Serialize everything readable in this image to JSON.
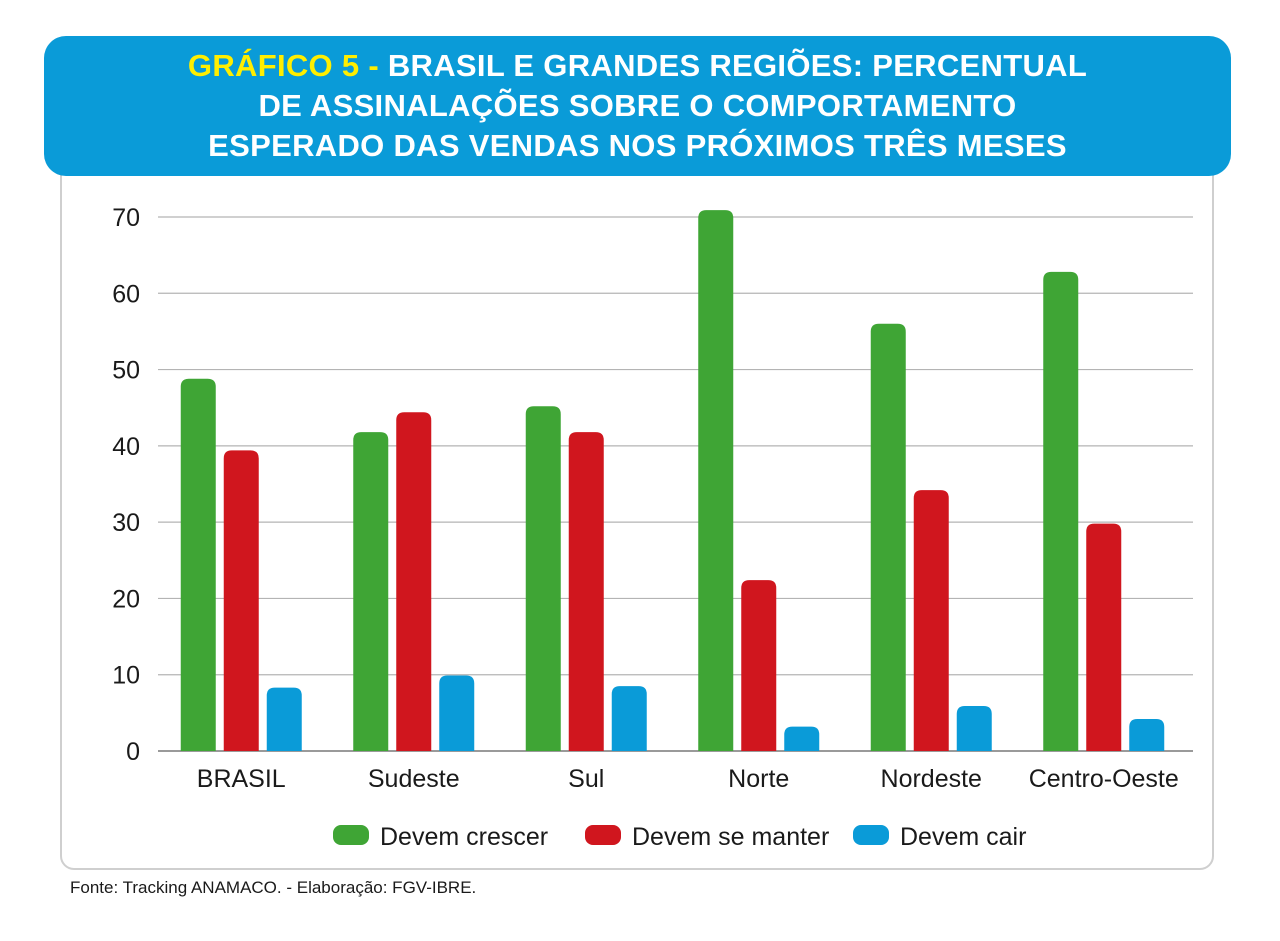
{
  "header": {
    "label": "GRÁFICO 5 -",
    "title_line1": "BRASIL E GRANDES REGIÕES: PERCENTUAL",
    "title_line2": "DE  ASSINALAÇÕES SOBRE O COMPORTAMENTO",
    "title_line3": "ESPERADO DAS VENDAS NOS PRÓXIMOS TRÊS MESES"
  },
  "chart_data": {
    "type": "bar",
    "categories": [
      "BRASIL",
      "Sudeste",
      "Sul",
      "Norte",
      "Nordeste",
      "Centro-Oeste"
    ],
    "series": [
      {
        "name": "Devem crescer",
        "color": "#3fa535",
        "values": [
          48.8,
          41.8,
          45.2,
          70.9,
          56.0,
          62.8
        ]
      },
      {
        "name": "Devem se manter",
        "color": "#d0161e",
        "values": [
          39.4,
          44.4,
          41.8,
          22.4,
          34.2,
          29.8
        ]
      },
      {
        "name": "Devem cair",
        "color": "#0a9bd8",
        "values": [
          8.3,
          9.9,
          8.5,
          3.2,
          5.9,
          4.2
        ]
      }
    ],
    "ylim": [
      0,
      70
    ],
    "yticks": [
      0,
      10,
      20,
      30,
      40,
      50,
      60,
      70
    ],
    "grid": true,
    "legend_position": "bottom"
  },
  "source": "Fonte: Tracking ANAMACO. - Elaboração: FGV-IBRE."
}
